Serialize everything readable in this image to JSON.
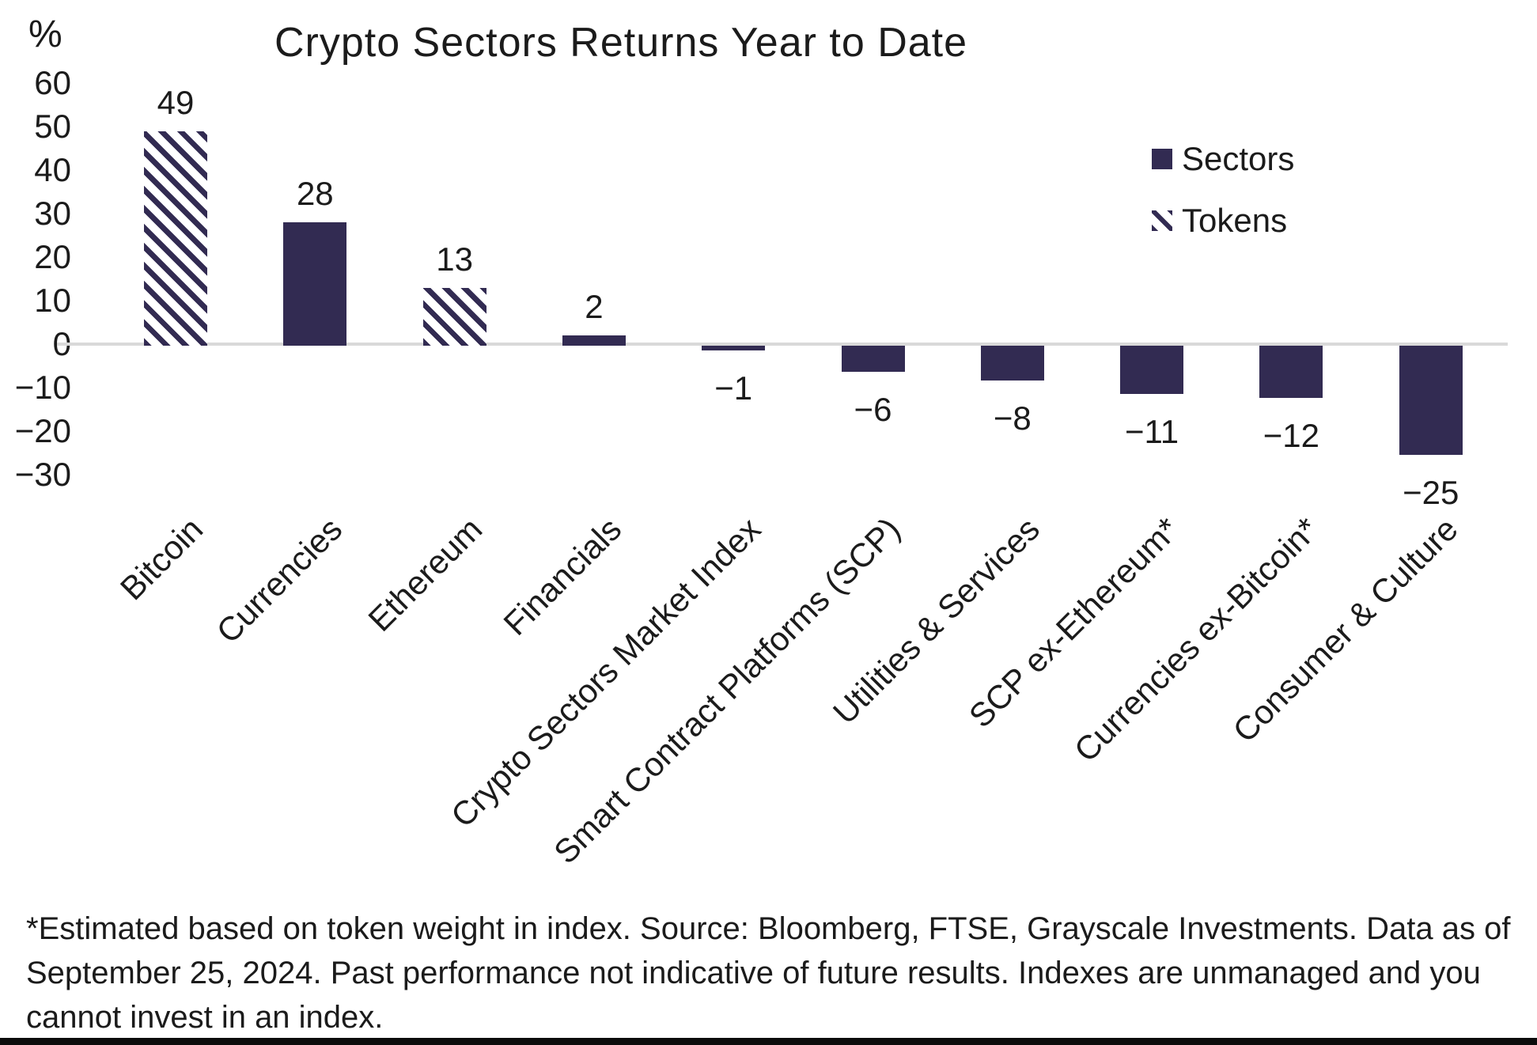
{
  "chart_data": {
    "type": "bar",
    "title": "Crypto Sectors Returns Year to Date",
    "ylabel": "%",
    "ylim": [
      -30,
      60
    ],
    "yticks": [
      60,
      50,
      40,
      30,
      20,
      10,
      0,
      -10,
      -20,
      -30
    ],
    "grid": "off",
    "legend_position": "upper right",
    "categories": [
      "Bitcoin",
      "Currencies",
      "Ethereum",
      "Financials",
      "Crypto Sectors Market Index",
      "Smart Contract Platforms (SCP)",
      "Utilities & Services",
      "SCP ex-Ethereum*",
      "Currencies ex-Bitcoin*",
      "Consumer & Culture"
    ],
    "values": [
      49,
      28,
      13,
      2,
      -1,
      -6,
      -8,
      -11,
      -12,
      -25
    ],
    "bar_style": [
      "hatched",
      "solid",
      "hatched",
      "solid",
      "solid",
      "solid",
      "solid",
      "solid",
      "solid",
      "solid"
    ],
    "legend": [
      {
        "label": "Sectors",
        "style": "solid"
      },
      {
        "label": "Tokens",
        "style": "hatched"
      }
    ],
    "colors": {
      "bar": "#322b52",
      "hatch_background": "#ffffff",
      "zero_line": "#d9d9d9",
      "text": "#1b1b1b"
    }
  },
  "footnote_lines": [
    "*Estimated based on token weight in index. Source: Bloomberg, FTSE, Grayscale Investments. Data as of",
    "September 25, 2024. Past performance not indicative of future results. Indexes are unmanaged and you",
    "cannot invest in an index."
  ]
}
